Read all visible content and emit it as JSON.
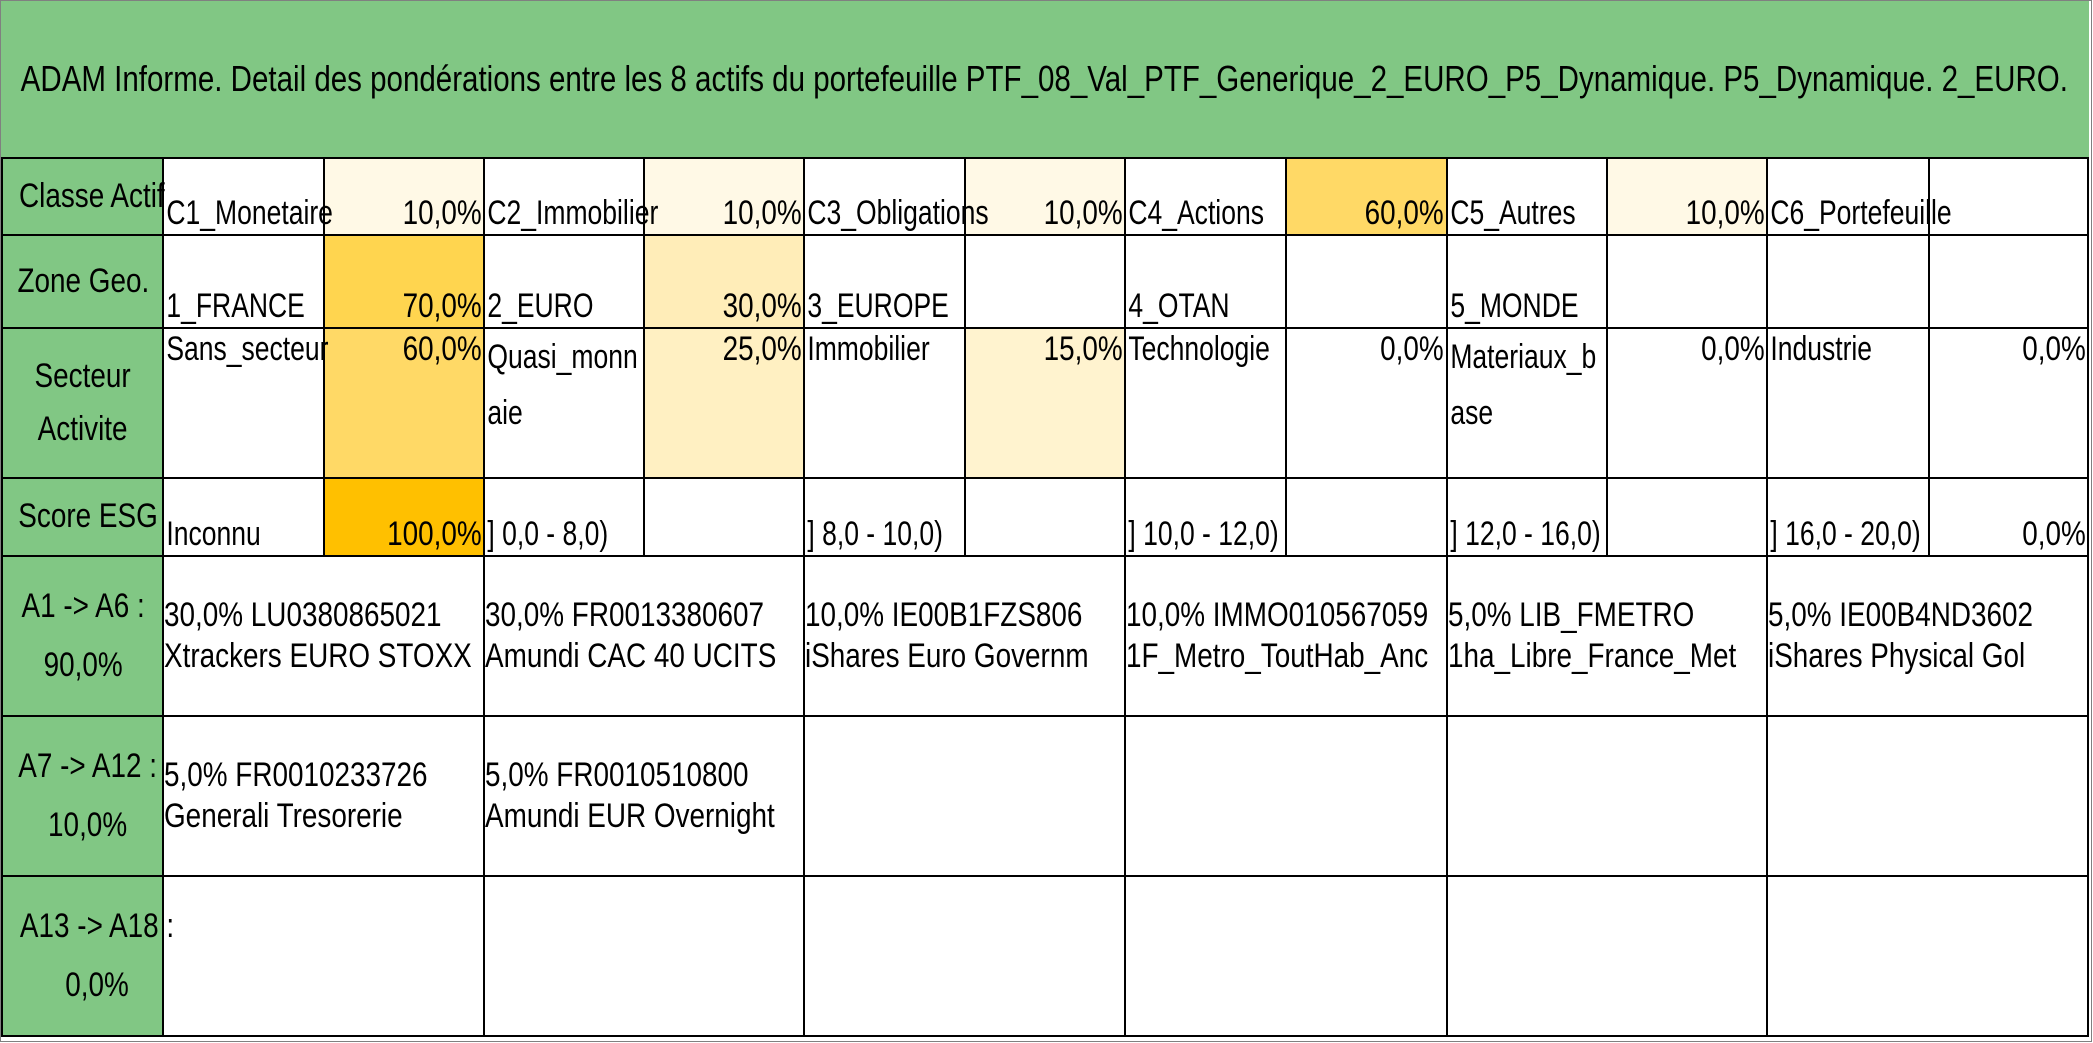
{
  "title": "ADAM Informe. Detail des pondérations entre les 8 actifs du portefeuille PTF_08_Val_PTF_Generique_2_EURO_P5_Dynamique. P5_Dynamique. 2_EURO.",
  "colors": {
    "header_green": "#81c784",
    "light": "#fff2cc",
    "pale": "#fff9e6",
    "medium": "#ffe082",
    "strong": "#ffd54f",
    "max": "#ffc000"
  },
  "classe_actif": {
    "label": "Classe Actif",
    "items": [
      {
        "name": "C1_Monetaire",
        "pct": "10,0%"
      },
      {
        "name": "C2_Immobilier",
        "pct": "10,0%"
      },
      {
        "name": "C3_Obligations",
        "pct": "10,0%"
      },
      {
        "name": "C4_Actions",
        "pct": "60,0%"
      },
      {
        "name": "C5_Autres",
        "pct": "10,0%"
      },
      {
        "name": "C6_Portefeuille",
        "pct": ""
      }
    ]
  },
  "zone_geo": {
    "label": "Zone Geo.",
    "items": [
      {
        "name": "1_FRANCE",
        "pct": "70,0%"
      },
      {
        "name": "2_EURO",
        "pct": "30,0%"
      },
      {
        "name": "3_EUROPE",
        "pct": ""
      },
      {
        "name": "4_OTAN",
        "pct": ""
      },
      {
        "name": "5_MONDE",
        "pct": ""
      },
      {
        "name": "",
        "pct": ""
      }
    ]
  },
  "secteur": {
    "label_line1": "Secteur",
    "label_line2": "Activite",
    "items": [
      {
        "name": "Sans_secteur",
        "pct": "60,0%"
      },
      {
        "name": "Quasi_monnaie",
        "pct": "25,0%"
      },
      {
        "name": "Immobilier",
        "pct": "15,0%"
      },
      {
        "name": "Technologie",
        "pct": "0,0%"
      },
      {
        "name": "Materiaux_base",
        "pct": "0,0%"
      },
      {
        "name": "Industrie",
        "pct": "0,0%"
      }
    ]
  },
  "score_esg": {
    "label": "Score ESG",
    "items": [
      {
        "name": "Inconnu",
        "pct": "100,0%"
      },
      {
        "name": "] 0,0 - 8,0)",
        "pct": ""
      },
      {
        "name": "] 8,0 - 10,0)",
        "pct": ""
      },
      {
        "name": "] 10,0 - 12,0)",
        "pct": ""
      },
      {
        "name": "] 12,0 - 16,0)",
        "pct": ""
      },
      {
        "name": "] 16,0 - 20,0)",
        "pct": "0,0%"
      }
    ]
  },
  "assets": [
    {
      "label_line1": "A1 -> A6 :",
      "label_line2": "90,0%",
      "items": [
        {
          "line1": "30,0% LU0380865021",
          "line2": "Xtrackers EURO STOXX"
        },
        {
          "line1": "30,0% FR0013380607",
          "line2": "Amundi CAC 40 UCITS"
        },
        {
          "line1": "10,0% IE00B1FZS806",
          "line2": "iShares Euro Governm"
        },
        {
          "line1": "10,0% IMMO010567059",
          "line2": "1F_Metro_ToutHab_Anc"
        },
        {
          "line1": "5,0% LIB_FMETRO",
          "line2": "1ha_Libre_France_Met"
        },
        {
          "line1": "5,0% IE00B4ND3602",
          "line2": "iShares Physical Gol"
        }
      ]
    },
    {
      "label_line1": "A7 -> A12 :",
      "label_line2": "10,0%",
      "items": [
        {
          "line1": "5,0% FR0010233726",
          "line2": "Generali Tresorerie"
        },
        {
          "line1": "5,0% FR0010510800",
          "line2": "Amundi EUR Overnight"
        },
        {
          "line1": "",
          "line2": ""
        },
        {
          "line1": "",
          "line2": ""
        },
        {
          "line1": "",
          "line2": ""
        },
        {
          "line1": "",
          "line2": ""
        }
      ]
    },
    {
      "label_line1": "A13 -> A18 :",
      "label_line2": "0,0%",
      "items": [
        {
          "line1": "",
          "line2": ""
        },
        {
          "line1": "",
          "line2": ""
        },
        {
          "line1": "",
          "line2": ""
        },
        {
          "line1": "",
          "line2": ""
        },
        {
          "line1": "",
          "line2": ""
        },
        {
          "line1": "",
          "line2": ""
        }
      ]
    }
  ]
}
